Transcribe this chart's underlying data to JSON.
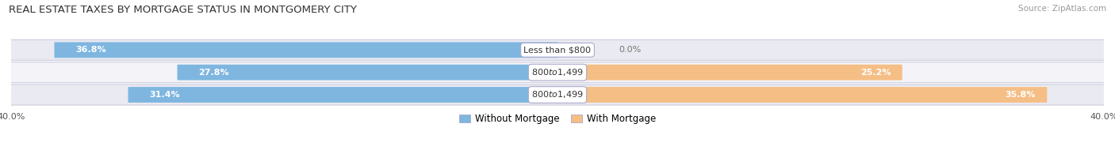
{
  "title": "Real Estate Taxes by Mortgage Status in Montgomery City",
  "source": "Source: ZipAtlas.com",
  "rows": [
    {
      "label": "Less than $800",
      "without_mortgage": 36.8,
      "with_mortgage": 0.0
    },
    {
      "label": "$800 to $1,499",
      "without_mortgage": 27.8,
      "with_mortgage": 25.2
    },
    {
      "label": "$800 to $1,499",
      "without_mortgage": 31.4,
      "with_mortgage": 35.8
    }
  ],
  "xlim": 40.0,
  "color_without": "#7EB6E0",
  "color_with": "#F5BE85",
  "color_label_bg": "#FFFFFF",
  "bar_height": 0.62,
  "row_bg_even": "#EAEAF2",
  "row_bg_odd": "#F4F4F8",
  "title_fontsize": 9.5,
  "source_fontsize": 7.5,
  "bar_label_fontsize": 8,
  "axis_label_fontsize": 8,
  "legend_fontsize": 8.5
}
